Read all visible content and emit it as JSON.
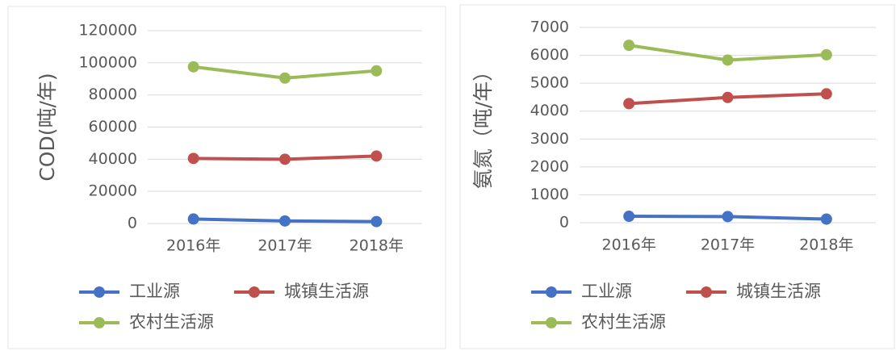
{
  "chart_data": [
    {
      "type": "line",
      "y_label": "COD(吨/年)",
      "categories": [
        "2016年",
        "2017年",
        "2018年"
      ],
      "ylim": [
        0,
        120000
      ],
      "yticks": [
        0,
        20000,
        40000,
        60000,
        80000,
        100000,
        120000
      ],
      "grid": true,
      "series": [
        {
          "name": "工业源",
          "color": "#4472c4",
          "values": [
            2800,
            1600,
            1200
          ]
        },
        {
          "name": "城镇生活源",
          "color": "#c0504d",
          "values": [
            40500,
            40000,
            42000
          ]
        },
        {
          "name": "农村生活源",
          "color": "#9bbb59",
          "values": [
            97500,
            90500,
            95000
          ]
        }
      ]
    },
    {
      "type": "line",
      "y_label": "氨氮（吨/年）",
      "categories": [
        "2016年",
        "2017年",
        "2018年"
      ],
      "ylim": [
        0,
        7000
      ],
      "yticks": [
        0,
        1000,
        2000,
        3000,
        4000,
        5000,
        6000,
        7000
      ],
      "grid": true,
      "series": [
        {
          "name": "工业源",
          "color": "#4472c4",
          "values": [
            230,
            220,
            130
          ]
        },
        {
          "name": "城镇生活源",
          "color": "#c0504d",
          "values": [
            4270,
            4490,
            4620
          ]
        },
        {
          "name": "农村生活源",
          "color": "#9bbb59",
          "values": [
            6360,
            5830,
            6020
          ]
        }
      ]
    }
  ]
}
